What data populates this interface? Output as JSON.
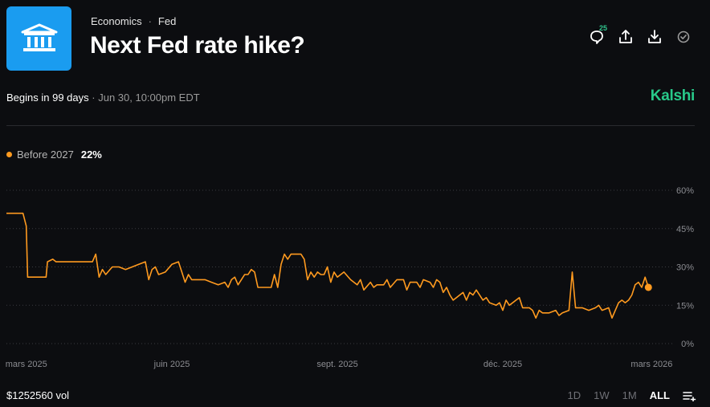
{
  "header": {
    "breadcrumb": [
      "Economics",
      "Fed"
    ],
    "breadcrumb_sep": "·",
    "title": "Next Fed rate hike?",
    "comment_count": "25"
  },
  "info": {
    "begins": "Begins in 99 days",
    "sep": "·",
    "datetime": "Jun 30, 10:00pm EDT",
    "brand": "Kalshi"
  },
  "legend": {
    "label": "Before 2027",
    "value": "22%",
    "color": "#ff9a1f"
  },
  "footer": {
    "volume": "$1252560 vol",
    "ranges": [
      "1D",
      "1W",
      "1M",
      "ALL"
    ],
    "active_range": "ALL"
  },
  "icons": {
    "logo": "bank-icon",
    "comments": "comment-icon",
    "share": "share-icon",
    "download": "download-icon",
    "watch": "check-circle-icon",
    "chart_settings": "list-add-icon"
  },
  "chart_data": {
    "type": "line",
    "title": "Before 2027",
    "xlabel": "",
    "ylabel": "",
    "ylim": [
      0,
      60
    ],
    "y_ticks": [
      60,
      45,
      30,
      15,
      0
    ],
    "y_tick_labels": [
      "60%",
      "45%",
      "30%",
      "15%",
      "0%"
    ],
    "x_ticks": [
      {
        "t": 0.03,
        "label": "mars 2025"
      },
      {
        "t": 0.25,
        "label": "juin 2025"
      },
      {
        "t": 0.5,
        "label": "sept. 2025"
      },
      {
        "t": 0.75,
        "label": "déc. 2025"
      },
      {
        "t": 0.975,
        "label": "mars 2026"
      }
    ],
    "series": [
      {
        "name": "Before 2027",
        "color": "#ff9a1f",
        "points": [
          [
            0,
            51
          ],
          [
            0.015,
            51
          ],
          [
            0.025,
            51
          ],
          [
            0.03,
            46
          ],
          [
            0.032,
            26
          ],
          [
            0.06,
            26
          ],
          [
            0.062,
            32
          ],
          [
            0.07,
            33
          ],
          [
            0.075,
            32
          ],
          [
            0.09,
            32
          ],
          [
            0.12,
            32
          ],
          [
            0.13,
            32
          ],
          [
            0.135,
            35
          ],
          [
            0.14,
            26
          ],
          [
            0.145,
            29
          ],
          [
            0.15,
            27
          ],
          [
            0.16,
            30
          ],
          [
            0.17,
            30
          ],
          [
            0.18,
            29
          ],
          [
            0.19,
            30
          ],
          [
            0.2,
            31
          ],
          [
            0.21,
            32
          ],
          [
            0.215,
            25
          ],
          [
            0.22,
            29
          ],
          [
            0.225,
            30
          ],
          [
            0.23,
            27
          ],
          [
            0.24,
            28
          ],
          [
            0.25,
            31
          ],
          [
            0.26,
            32
          ],
          [
            0.265,
            28
          ],
          [
            0.27,
            24
          ],
          [
            0.275,
            27
          ],
          [
            0.28,
            25
          ],
          [
            0.3,
            25
          ],
          [
            0.31,
            24
          ],
          [
            0.32,
            23
          ],
          [
            0.33,
            24
          ],
          [
            0.335,
            22
          ],
          [
            0.34,
            25
          ],
          [
            0.345,
            26
          ],
          [
            0.35,
            23
          ],
          [
            0.355,
            25
          ],
          [
            0.36,
            27
          ],
          [
            0.365,
            27
          ],
          [
            0.37,
            29
          ],
          [
            0.375,
            28
          ],
          [
            0.38,
            22
          ],
          [
            0.39,
            22
          ],
          [
            0.4,
            22
          ],
          [
            0.405,
            27
          ],
          [
            0.41,
            22
          ],
          [
            0.415,
            31
          ],
          [
            0.42,
            35
          ],
          [
            0.425,
            33
          ],
          [
            0.43,
            35
          ],
          [
            0.44,
            35
          ],
          [
            0.445,
            35
          ],
          [
            0.45,
            33
          ],
          [
            0.455,
            25
          ],
          [
            0.46,
            28
          ],
          [
            0.465,
            26
          ],
          [
            0.47,
            28
          ],
          [
            0.475,
            27
          ],
          [
            0.48,
            27
          ],
          [
            0.485,
            30
          ],
          [
            0.49,
            24
          ],
          [
            0.495,
            28
          ],
          [
            0.5,
            26
          ],
          [
            0.51,
            28
          ],
          [
            0.52,
            25
          ],
          [
            0.53,
            23
          ],
          [
            0.535,
            25
          ],
          [
            0.54,
            21
          ],
          [
            0.55,
            24
          ],
          [
            0.555,
            22
          ],
          [
            0.56,
            23
          ],
          [
            0.57,
            23
          ],
          [
            0.575,
            25
          ],
          [
            0.58,
            22
          ],
          [
            0.59,
            25
          ],
          [
            0.6,
            25
          ],
          [
            0.605,
            21
          ],
          [
            0.61,
            24
          ],
          [
            0.62,
            24
          ],
          [
            0.625,
            22
          ],
          [
            0.63,
            25
          ],
          [
            0.64,
            24
          ],
          [
            0.645,
            22
          ],
          [
            0.65,
            25
          ],
          [
            0.655,
            24
          ],
          [
            0.66,
            20
          ],
          [
            0.665,
            22
          ],
          [
            0.67,
            19
          ],
          [
            0.675,
            17
          ],
          [
            0.68,
            18
          ],
          [
            0.685,
            19
          ],
          [
            0.69,
            20
          ],
          [
            0.695,
            17
          ],
          [
            0.7,
            20
          ],
          [
            0.705,
            19
          ],
          [
            0.71,
            21
          ],
          [
            0.72,
            17
          ],
          [
            0.725,
            18
          ],
          [
            0.73,
            16
          ],
          [
            0.74,
            15
          ],
          [
            0.745,
            16
          ],
          [
            0.75,
            13
          ],
          [
            0.755,
            17
          ],
          [
            0.76,
            15
          ],
          [
            0.77,
            17
          ],
          [
            0.775,
            18
          ],
          [
            0.78,
            14
          ],
          [
            0.79,
            14
          ],
          [
            0.795,
            13
          ],
          [
            0.8,
            10
          ],
          [
            0.805,
            13
          ],
          [
            0.81,
            12
          ],
          [
            0.82,
            12
          ],
          [
            0.83,
            13
          ],
          [
            0.835,
            11
          ],
          [
            0.84,
            12
          ],
          [
            0.85,
            13
          ],
          [
            0.855,
            28
          ],
          [
            0.86,
            14
          ],
          [
            0.87,
            14
          ],
          [
            0.88,
            13
          ],
          [
            0.89,
            14
          ],
          [
            0.895,
            15
          ],
          [
            0.9,
            13
          ],
          [
            0.91,
            14
          ],
          [
            0.915,
            10
          ],
          [
            0.92,
            13
          ],
          [
            0.925,
            16
          ],
          [
            0.93,
            17
          ],
          [
            0.935,
            16
          ],
          [
            0.94,
            17
          ],
          [
            0.945,
            19
          ],
          [
            0.95,
            23
          ],
          [
            0.955,
            24
          ],
          [
            0.96,
            22
          ],
          [
            0.965,
            26
          ],
          [
            0.97,
            22
          ]
        ]
      }
    ]
  }
}
